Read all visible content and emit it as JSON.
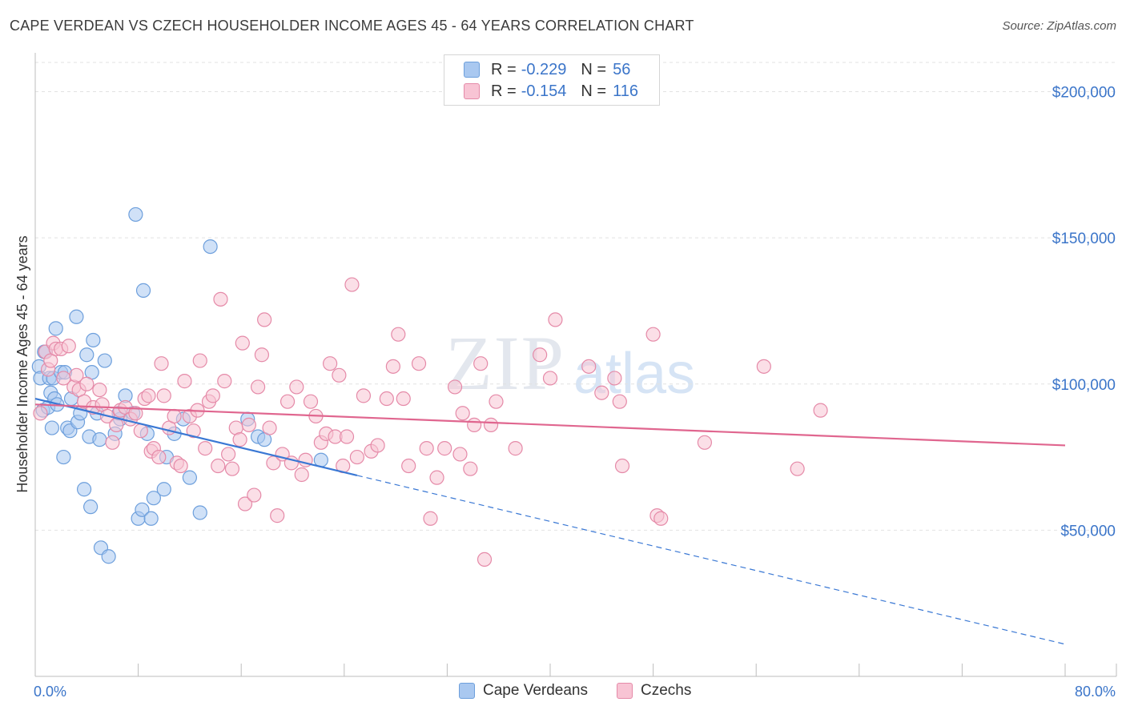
{
  "title": "CAPE VERDEAN VS CZECH HOUSEHOLDER INCOME AGES 45 - 64 YEARS CORRELATION CHART",
  "source": "Source: ZipAtlas.com",
  "watermark": {
    "part1": "ZIP",
    "part2": "atlas"
  },
  "legend": {
    "rows": [
      {
        "r_label": "R =",
        "r_value": "-0.229",
        "n_label": "N =",
        "n_value": "56",
        "color": "#a9c8f0",
        "border": "#6d9fdc"
      },
      {
        "r_label": "R =",
        "r_value": "-0.154",
        "n_label": "N =",
        "n_value": "116",
        "color": "#f8c4d4",
        "border": "#e58aa8"
      }
    ]
  },
  "bottom_legend": [
    {
      "label": "Cape Verdeans",
      "color": "#a9c8f0",
      "border": "#6d9fdc"
    },
    {
      "label": "Czechs",
      "color": "#f8c4d4",
      "border": "#e58aa8"
    }
  ],
  "chart_data": {
    "type": "scatter",
    "title": "CAPE VERDEAN VS CZECH HOUSEHOLDER INCOME AGES 45 - 64 YEARS CORRELATION CHART",
    "xlabel": "",
    "ylabel": "Householder Income Ages 45 - 64 years",
    "xlim": [
      0,
      80
    ],
    "ylim": [
      0,
      210000
    ],
    "x_tick_labels": [
      "0.0%",
      "80.0%"
    ],
    "y_ticks": [
      50000,
      100000,
      150000,
      200000
    ],
    "y_tick_labels": [
      "$50,000",
      "$100,000",
      "$150,000",
      "$200,000"
    ],
    "grid": true,
    "legend_position": "top-center",
    "series": [
      {
        "name": "Cape Verdeans",
        "color": "#6d9fdc",
        "fill": "#a9c8f0",
        "line_color": "#3a78d4",
        "trend": {
          "x_start": 0,
          "y_start": 95000,
          "x_solid_end": 25,
          "x_end": 80,
          "y_end": 11000
        },
        "points": [
          [
            0.3,
            106000
          ],
          [
            0.4,
            102000
          ],
          [
            0.6,
            91000
          ],
          [
            0.7,
            111000
          ],
          [
            0.8,
            111000
          ],
          [
            1.0,
            92000
          ],
          [
            1.1,
            102000
          ],
          [
            1.2,
            97000
          ],
          [
            1.3,
            85000
          ],
          [
            1.4,
            102000
          ],
          [
            1.5,
            95000
          ],
          [
            1.6,
            119000
          ],
          [
            1.7,
            93000
          ],
          [
            2.0,
            104000
          ],
          [
            2.2,
            75000
          ],
          [
            2.3,
            104000
          ],
          [
            2.5,
            85000
          ],
          [
            2.7,
            84000
          ],
          [
            2.8,
            95000
          ],
          [
            3.2,
            123000
          ],
          [
            3.3,
            87000
          ],
          [
            3.5,
            90000
          ],
          [
            3.8,
            64000
          ],
          [
            4.0,
            110000
          ],
          [
            4.2,
            82000
          ],
          [
            4.3,
            58000
          ],
          [
            4.4,
            104000
          ],
          [
            4.5,
            115000
          ],
          [
            4.8,
            90000
          ],
          [
            5.0,
            81000
          ],
          [
            5.1,
            44000
          ],
          [
            5.4,
            108000
          ],
          [
            5.7,
            41000
          ],
          [
            6.2,
            83000
          ],
          [
            6.6,
            88000
          ],
          [
            7.0,
            96000
          ],
          [
            7.6,
            90000
          ],
          [
            7.8,
            158000
          ],
          [
            8.0,
            54000
          ],
          [
            8.3,
            57000
          ],
          [
            8.4,
            132000
          ],
          [
            8.7,
            83000
          ],
          [
            9.0,
            54000
          ],
          [
            9.2,
            61000
          ],
          [
            10.0,
            64000
          ],
          [
            10.2,
            75000
          ],
          [
            10.8,
            83000
          ],
          [
            11.5,
            88000
          ],
          [
            12.0,
            68000
          ],
          [
            12.8,
            56000
          ],
          [
            13.6,
            147000
          ],
          [
            16.5,
            88000
          ],
          [
            17.3,
            82000
          ],
          [
            17.8,
            81000
          ],
          [
            22.2,
            74000
          ],
          [
            6.5,
            90000
          ]
        ]
      },
      {
        "name": "Czechs",
        "color": "#e58aa8",
        "fill": "#f8c4d4",
        "line_color": "#e0668f",
        "trend": {
          "x_start": 0,
          "y_start": 93000,
          "x_end": 80,
          "y_end": 79000
        },
        "points": [
          [
            0.4,
            90000
          ],
          [
            0.8,
            111000
          ],
          [
            1.0,
            105000
          ],
          [
            1.2,
            108000
          ],
          [
            1.4,
            114000
          ],
          [
            1.6,
            112000
          ],
          [
            2.0,
            112000
          ],
          [
            2.2,
            102000
          ],
          [
            2.6,
            113000
          ],
          [
            3.0,
            99000
          ],
          [
            3.2,
            103000
          ],
          [
            3.4,
            98000
          ],
          [
            3.8,
            94000
          ],
          [
            4.0,
            100000
          ],
          [
            4.5,
            92000
          ],
          [
            5.0,
            98000
          ],
          [
            5.2,
            93000
          ],
          [
            5.6,
            89000
          ],
          [
            6.0,
            80000
          ],
          [
            6.3,
            86000
          ],
          [
            6.6,
            91000
          ],
          [
            7.0,
            92000
          ],
          [
            7.4,
            88000
          ],
          [
            7.8,
            90000
          ],
          [
            8.2,
            84000
          ],
          [
            8.5,
            95000
          ],
          [
            8.8,
            96000
          ],
          [
            9.0,
            77000
          ],
          [
            9.2,
            78000
          ],
          [
            9.6,
            75000
          ],
          [
            9.8,
            107000
          ],
          [
            10.0,
            96000
          ],
          [
            10.4,
            85000
          ],
          [
            10.8,
            89000
          ],
          [
            11.0,
            73000
          ],
          [
            11.3,
            72000
          ],
          [
            11.6,
            101000
          ],
          [
            12.0,
            89000
          ],
          [
            12.3,
            84000
          ],
          [
            12.6,
            91000
          ],
          [
            12.8,
            108000
          ],
          [
            13.2,
            78000
          ],
          [
            13.5,
            94000
          ],
          [
            13.8,
            96000
          ],
          [
            14.2,
            72000
          ],
          [
            14.4,
            129000
          ],
          [
            14.7,
            101000
          ],
          [
            15.0,
            76000
          ],
          [
            15.3,
            71000
          ],
          [
            15.6,
            85000
          ],
          [
            15.9,
            81000
          ],
          [
            16.1,
            114000
          ],
          [
            16.3,
            59000
          ],
          [
            16.6,
            86000
          ],
          [
            17.0,
            62000
          ],
          [
            17.3,
            99000
          ],
          [
            17.6,
            110000
          ],
          [
            17.8,
            122000
          ],
          [
            18.2,
            85000
          ],
          [
            18.5,
            73000
          ],
          [
            18.8,
            55000
          ],
          [
            19.2,
            76000
          ],
          [
            19.6,
            94000
          ],
          [
            19.9,
            73000
          ],
          [
            20.3,
            99000
          ],
          [
            20.7,
            69000
          ],
          [
            21.0,
            74000
          ],
          [
            21.4,
            94000
          ],
          [
            21.8,
            89000
          ],
          [
            22.2,
            80000
          ],
          [
            22.6,
            83000
          ],
          [
            22.9,
            107000
          ],
          [
            23.3,
            82000
          ],
          [
            23.6,
            103000
          ],
          [
            23.9,
            72000
          ],
          [
            24.2,
            82000
          ],
          [
            24.6,
            134000
          ],
          [
            25.0,
            75000
          ],
          [
            25.5,
            96000
          ],
          [
            26.1,
            77000
          ],
          [
            26.6,
            79000
          ],
          [
            27.3,
            95000
          ],
          [
            27.8,
            106000
          ],
          [
            28.2,
            117000
          ],
          [
            28.6,
            95000
          ],
          [
            29.0,
            72000
          ],
          [
            29.8,
            107000
          ],
          [
            30.4,
            78000
          ],
          [
            30.7,
            54000
          ],
          [
            31.2,
            68000
          ],
          [
            31.8,
            78000
          ],
          [
            32.6,
            99000
          ],
          [
            33.2,
            90000
          ],
          [
            33.8,
            71000
          ],
          [
            34.1,
            86000
          ],
          [
            34.6,
            107000
          ],
          [
            34.9,
            40000
          ],
          [
            35.4,
            86000
          ],
          [
            35.8,
            94000
          ],
          [
            37.3,
            78000
          ],
          [
            39.2,
            110000
          ],
          [
            40.0,
            102000
          ],
          [
            40.4,
            122000
          ],
          [
            43.0,
            106000
          ],
          [
            44.0,
            97000
          ],
          [
            45.0,
            102000
          ],
          [
            45.4,
            94000
          ],
          [
            45.6,
            72000
          ],
          [
            48.0,
            117000
          ],
          [
            48.3,
            55000
          ],
          [
            48.6,
            54000
          ],
          [
            52.0,
            80000
          ],
          [
            56.6,
            106000
          ],
          [
            59.2,
            71000
          ],
          [
            61.0,
            91000
          ],
          [
            33.0,
            76000
          ]
        ]
      }
    ]
  }
}
